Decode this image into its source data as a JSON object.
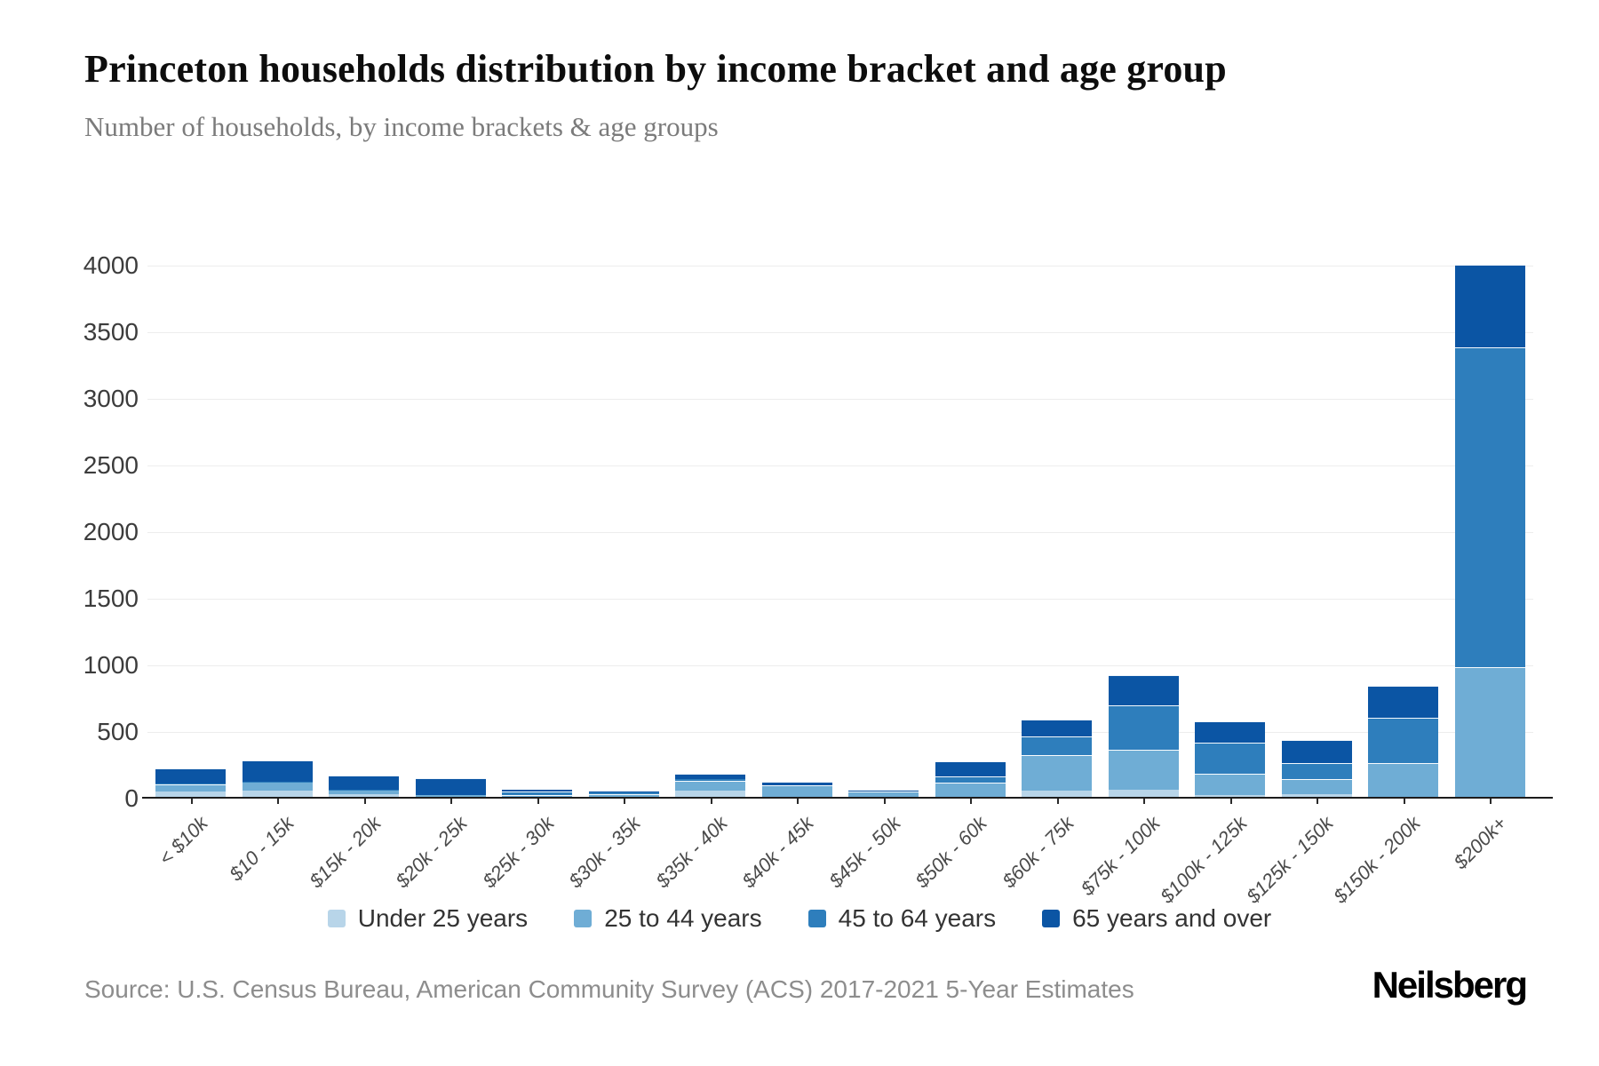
{
  "header": {
    "title": "Princeton households distribution by income bracket and age group",
    "subtitle": "Number of households, by income brackets & age groups"
  },
  "footer": {
    "source": "Source: U.S. Census Bureau, American Community Survey (ACS) 2017-2021 5-Year Estimates",
    "brand": "Neilsberg"
  },
  "chart_data": {
    "type": "bar",
    "stacked": true,
    "title": "Princeton households distribution by income bracket and age group",
    "xlabel": "",
    "ylabel": "Number of households",
    "ylim": [
      0,
      4000
    ],
    "ytick_step": 500,
    "grid": true,
    "legend_position": "bottom",
    "categories": [
      "< $10k",
      "$10 - 15k",
      "$15k - 20k",
      "$20k - 25k",
      "$25k - 30k",
      "$30k - 35k",
      "$35k - 40k",
      "$40k - 45k",
      "$45k - 50k",
      "$50k - 60k",
      "$60k - 75k",
      "$75k - 100k",
      "$100k - 125k",
      "$125k - 150k",
      "$150k - 200k",
      "$200k+"
    ],
    "series": [
      {
        "name": "Under 25 years",
        "color": "#b8d5e9",
        "values": [
          55,
          60,
          35,
          15,
          10,
          15,
          60,
          5,
          5,
          10,
          60,
          70,
          30,
          35,
          10,
          0
        ]
      },
      {
        "name": "25 to 44 years",
        "color": "#6fadd5",
        "values": [
          50,
          65,
          30,
          10,
          15,
          20,
          75,
          95,
          50,
          110,
          265,
          300,
          160,
          115,
          255,
          990
        ]
      },
      {
        "name": "45 to 64 years",
        "color": "#2e7ebc",
        "values": [
          10,
          5,
          5,
          0,
          30,
          10,
          10,
          0,
          0,
          45,
          140,
          330,
          230,
          120,
          340,
          2400
        ]
      },
      {
        "name": "65 years and over",
        "color": "#0b55a4",
        "values": [
          115,
          160,
          105,
          130,
          10,
          15,
          45,
          25,
          15,
          115,
          130,
          230,
          160,
          170,
          240,
          620
        ]
      }
    ]
  }
}
